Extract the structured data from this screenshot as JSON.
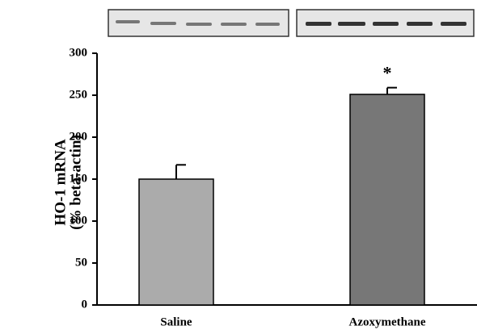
{
  "chart_data": {
    "type": "bar",
    "ylabel": [
      "HO-1 mRNA",
      "(% beta-actin)"
    ],
    "categories": [
      "Saline",
      "Azoxymethane"
    ],
    "values": [
      150,
      251
    ],
    "errors": [
      17,
      8
    ],
    "colors": [
      "#ababab",
      "#777777"
    ],
    "annotation": {
      "text": "*",
      "category": 1
    },
    "ylim": [
      0,
      300
    ],
    "yticks": [
      0,
      50,
      100,
      150,
      200,
      250,
      300
    ],
    "grid": false
  }
}
